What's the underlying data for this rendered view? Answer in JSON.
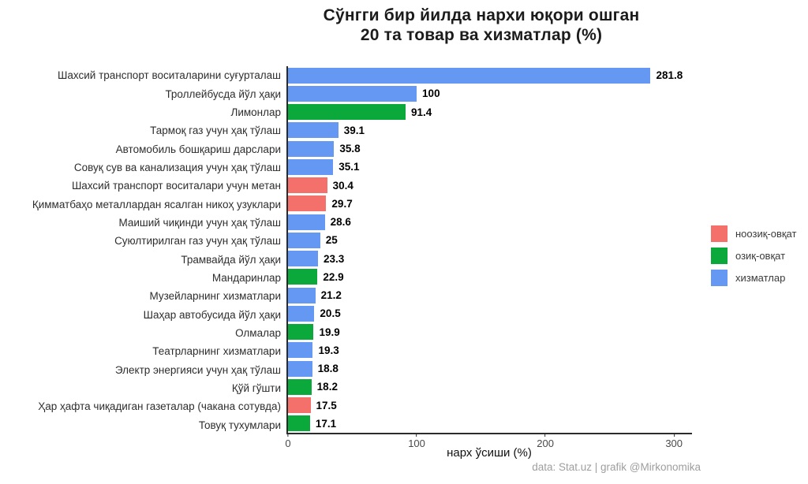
{
  "title": {
    "line1": "Сўнгги бир йилда нархи юқори ошган",
    "line2": "20 та товар ва хизматлар (%)"
  },
  "caption": "data: Stat.uz | grafik @Mirkonomika",
  "colors": {
    "nooziq-ovqat": "#F3716A",
    "oziq-ovqat": "#0BA93C",
    "xizmatlar": "#6598F2",
    "axis": "#2b2b2b"
  },
  "legend": {
    "items": [
      {
        "label": "ноозиқ-овқат",
        "key": "nooziq-ovqat"
      },
      {
        "label": "озиқ-овқат",
        "key": "oziq-ovqat"
      },
      {
        "label": "хизматлар",
        "key": "xizmatlar"
      }
    ]
  },
  "chart_data": {
    "type": "bar",
    "orientation": "horizontal",
    "title": "Сўнгги бир йилда нархи юқори ошган 20 та товар ва хизматлар (%)",
    "xlabel": "нарх ўсиши (%)",
    "ylabel": "",
    "xlim": [
      0,
      314
    ],
    "x_ticks": [
      0,
      100,
      200,
      300
    ],
    "grid": false,
    "legend_position": "right",
    "bars": [
      {
        "label": "Шахсий транспорт воситаларини суғурталаш",
        "value": 281.8,
        "display": "281.8",
        "group": "xizmatlar"
      },
      {
        "label": "Троллейбусда йўл ҳақи",
        "value": 100,
        "display": "100",
        "group": "xizmatlar"
      },
      {
        "label": "Лимонлар",
        "value": 91.4,
        "display": "91.4",
        "group": "oziq-ovqat"
      },
      {
        "label": "Тармоқ газ учун ҳақ тўлаш",
        "value": 39.1,
        "display": "39.1",
        "group": "xizmatlar"
      },
      {
        "label": "Автомобиль бошқариш дарслари",
        "value": 35.8,
        "display": "35.8",
        "group": "xizmatlar"
      },
      {
        "label": "Совуқ сув ва канализация учун ҳақ тўлаш",
        "value": 35.1,
        "display": "35.1",
        "group": "xizmatlar"
      },
      {
        "label": "Шахсий транспорт воситалари учун метан",
        "value": 30.4,
        "display": "30.4",
        "group": "nooziq-ovqat"
      },
      {
        "label": "Қимматбаҳо металлардан ясалган никоҳ узуклари",
        "value": 29.7,
        "display": "29.7",
        "group": "nooziq-ovqat"
      },
      {
        "label": "Маиший чиқинди учун ҳақ тўлаш",
        "value": 28.6,
        "display": "28.6",
        "group": "xizmatlar"
      },
      {
        "label": "Суюлтирилган газ учун ҳақ тўлаш",
        "value": 25,
        "display": "25",
        "group": "xizmatlar"
      },
      {
        "label": "Трамвайда йўл ҳақи",
        "value": 23.3,
        "display": "23.3",
        "group": "xizmatlar"
      },
      {
        "label": "Мандаринлар",
        "value": 22.9,
        "display": "22.9",
        "group": "oziq-ovqat"
      },
      {
        "label": "Музейларнинг хизматлари",
        "value": 21.2,
        "display": "21.2",
        "group": "xizmatlar"
      },
      {
        "label": "Шаҳар автобусида йўл ҳақи",
        "value": 20.5,
        "display": "20.5",
        "group": "xizmatlar"
      },
      {
        "label": "Олмалар",
        "value": 19.9,
        "display": "19.9",
        "group": "oziq-ovqat"
      },
      {
        "label": "Театрларнинг хизматлари",
        "value": 19.3,
        "display": "19.3",
        "group": "xizmatlar"
      },
      {
        "label": "Электр энергияси учун ҳақ тўлаш",
        "value": 18.8,
        "display": "18.8",
        "group": "xizmatlar"
      },
      {
        "label": "Қўй гўшти",
        "value": 18.2,
        "display": "18.2",
        "group": "oziq-ovqat"
      },
      {
        "label": "Ҳар ҳафта чиқадиган газеталар (чакана сотувда)",
        "value": 17.5,
        "display": "17.5",
        "group": "nooziq-ovqat"
      },
      {
        "label": "Товуқ тухумлари",
        "value": 17.1,
        "display": "17.1",
        "group": "oziq-ovqat"
      }
    ]
  }
}
